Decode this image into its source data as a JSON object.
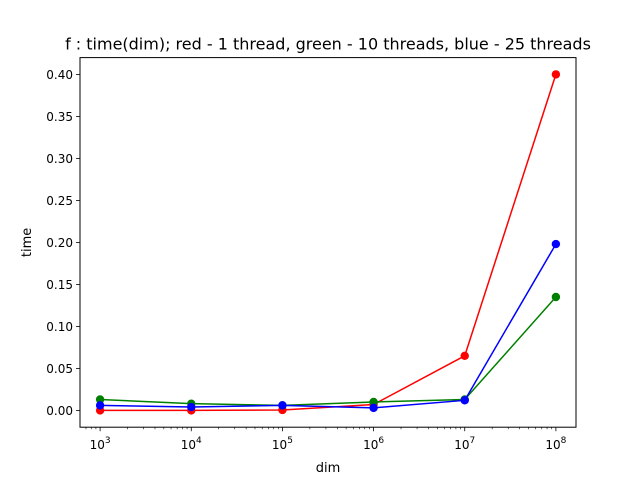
{
  "chart_data": {
    "type": "line",
    "title": "f : time(dim); red - 1 thread, green - 10 threads, blue - 25 threads",
    "xlabel": "dim",
    "ylabel": "time",
    "xscale": "log",
    "x": [
      1000,
      10000,
      100000,
      1000000,
      10000000,
      100000000
    ],
    "x_tick_labels": [
      {
        "value": 1000,
        "base": "10",
        "exp": "3"
      },
      {
        "value": 10000,
        "base": "10",
        "exp": "4"
      },
      {
        "value": 100000,
        "base": "10",
        "exp": "5"
      },
      {
        "value": 1000000,
        "base": "10",
        "exp": "6"
      },
      {
        "value": 10000000,
        "base": "10",
        "exp": "7"
      },
      {
        "value": 100000000,
        "base": "10",
        "exp": "8"
      }
    ],
    "y_ticks": [
      0.0,
      0.05,
      0.1,
      0.15,
      0.2,
      0.25,
      0.3,
      0.35,
      0.4
    ],
    "y_tick_labels": [
      "0.00",
      "0.05",
      "0.10",
      "0.15",
      "0.20",
      "0.25",
      "0.30",
      "0.35",
      "0.40"
    ],
    "ylim": [
      -0.02,
      0.42
    ],
    "grid": false,
    "legend": "none",
    "series": [
      {
        "color": "#ff0000",
        "values": [
          0.0,
          0.0,
          0.0005,
          0.007,
          0.065,
          0.4
        ]
      },
      {
        "color": "#008000",
        "values": [
          0.013,
          0.008,
          0.006,
          0.01,
          0.013,
          0.135
        ]
      },
      {
        "color": "#0000ff",
        "values": [
          0.006,
          0.004,
          0.006,
          0.003,
          0.012,
          0.198
        ]
      }
    ]
  }
}
